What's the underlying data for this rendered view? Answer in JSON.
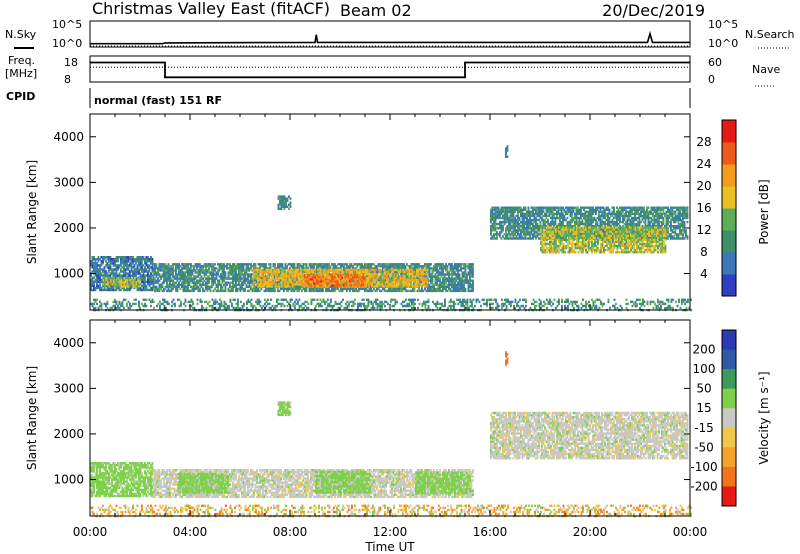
{
  "header": {
    "title": "Christmas Valley East (fitACF)",
    "beam": "Beam 02",
    "date": "20/Dec/2019"
  },
  "labels": {
    "nsky": "N.Sky",
    "nsearch": "N.Search",
    "freq": "Freq.",
    "freq_unit": "[MHz]",
    "nave": "Nave",
    "cpid": "CPID",
    "cpid_text": "normal (fast) 151 RF"
  },
  "colors": {
    "power": [
      "#2f3fbf",
      "#3a78b8",
      "#3f8f6a",
      "#5fae57",
      "#e8c020",
      "#f49a1c",
      "#ef5a1a",
      "#e51a12"
    ],
    "velocity": [
      "#e51a12",
      "#f4741c",
      "#f6a12a",
      "#f2c84c",
      "#c8c8c4",
      "#7fd04a",
      "#3f9a5a",
      "#2f58a8",
      "#2a3ab0"
    ],
    "velocity_bins": [
      -250,
      -200,
      -100,
      -50,
      -15,
      15,
      50,
      100,
      200,
      250
    ]
  },
  "chart_data": [
    {
      "type": "line",
      "name": "noise",
      "left_ticks": [
        "10^5",
        "10^0"
      ],
      "right_ticks": [
        "10^5",
        "10^0"
      ],
      "series": [
        {
          "name": "N.Sky",
          "x": [
            0,
            2.9,
            3.0,
            9.0,
            9.05,
            9.1,
            16.0,
            22.3,
            22.4,
            22.5,
            24
          ],
          "y": [
            1.3,
            1.3,
            1.5,
            1.6,
            3.4,
            1.6,
            1.6,
            1.6,
            3.6,
            1.6,
            1.6
          ]
        },
        {
          "name": "N.Search",
          "x": [
            0,
            24
          ],
          "y": [
            1.0,
            1.0
          ]
        }
      ]
    },
    {
      "type": "line",
      "name": "frequency",
      "left_ticks": [
        18,
        8
      ],
      "right_ticks": [
        60,
        0
      ],
      "series": [
        {
          "name": "Freq.",
          "x": [
            0,
            3,
            3,
            15,
            15,
            24
          ],
          "y": [
            15.5,
            15.5,
            9.8,
            9.8,
            15.5,
            15.5
          ]
        },
        {
          "name": "Nave",
          "x": [
            0,
            24
          ],
          "y": [
            34,
            34
          ]
        }
      ]
    },
    {
      "type": "heatmap",
      "name": "power",
      "ylabel": "Slant Range [km]",
      "colorbar_label": "Power [dB]",
      "colorbar_ticks": [
        4,
        8,
        12,
        16,
        20,
        24,
        28
      ],
      "xlim": [
        0,
        24
      ],
      "ylim": [
        200,
        4500
      ],
      "yticks": [
        1000,
        2000,
        3000,
        4000
      ],
      "regions": [
        {
          "t0": 0.0,
          "t1": 2.5,
          "r0": 620,
          "r1": 1380,
          "p": 7
        },
        {
          "t0": 0.5,
          "t1": 2.0,
          "r0": 700,
          "r1": 900,
          "p": 16
        },
        {
          "t0": 2.5,
          "t1": 15.3,
          "r0": 600,
          "r1": 1220,
          "p": 9
        },
        {
          "t0": 6.5,
          "t1": 13.5,
          "r0": 700,
          "r1": 1080,
          "p": 19
        },
        {
          "t0": 8.5,
          "t1": 11.0,
          "r0": 720,
          "r1": 980,
          "p": 24
        },
        {
          "t0": 7.5,
          "t1": 8.0,
          "r0": 2400,
          "r1": 2700,
          "p": 9
        },
        {
          "t0": 16.0,
          "t1": 23.9,
          "r0": 1750,
          "r1": 2450,
          "p": 9
        },
        {
          "t0": 18.0,
          "t1": 23.0,
          "r0": 1450,
          "r1": 2000,
          "p": 16
        },
        {
          "t0": 16.6,
          "t1": 16.7,
          "r0": 3500,
          "r1": 3800,
          "p": 8
        },
        {
          "t0": 0.0,
          "t1": 24.0,
          "r0": 180,
          "r1": 420,
          "p": 10
        }
      ]
    },
    {
      "type": "heatmap",
      "name": "velocity",
      "xlabel": "Time UT",
      "ylabel": "Slant Range [km]",
      "colorbar_label": "Velocity [m s⁻¹]",
      "colorbar_ticks": [
        "200",
        "100",
        "50",
        "15",
        "-15",
        "-50",
        "-100",
        "-200"
      ],
      "xlim": [
        0,
        24
      ],
      "ylim": [
        200,
        4500
      ],
      "xticks": [
        "00:00",
        "04:00",
        "08:00",
        "12:00",
        "16:00",
        "20:00",
        "00:00"
      ],
      "yticks": [
        1000,
        2000,
        3000,
        4000
      ],
      "regions": [
        {
          "t0": 0.0,
          "t1": 2.5,
          "r0": 620,
          "r1": 1380,
          "v": 30
        },
        {
          "t0": 2.5,
          "t1": 15.3,
          "r0": 600,
          "r1": 1220,
          "v": 0
        },
        {
          "t0": 3.5,
          "t1": 5.5,
          "r0": 700,
          "r1": 1150,
          "v": 30
        },
        {
          "t0": 9.0,
          "t1": 11.2,
          "r0": 700,
          "r1": 1180,
          "v": 30
        },
        {
          "t0": 13.0,
          "t1": 15.2,
          "r0": 680,
          "r1": 1150,
          "v": 30
        },
        {
          "t0": 7.5,
          "t1": 8.0,
          "r0": 2400,
          "r1": 2700,
          "v": 30
        },
        {
          "t0": 16.0,
          "t1": 23.9,
          "r0": 1450,
          "r1": 2450,
          "v": 0
        },
        {
          "t0": 16.6,
          "t1": 16.7,
          "r0": 3500,
          "r1": 3800,
          "v": -150
        },
        {
          "t0": 0.0,
          "t1": 24.0,
          "r0": 180,
          "r1": 420,
          "v": -40
        }
      ]
    }
  ]
}
